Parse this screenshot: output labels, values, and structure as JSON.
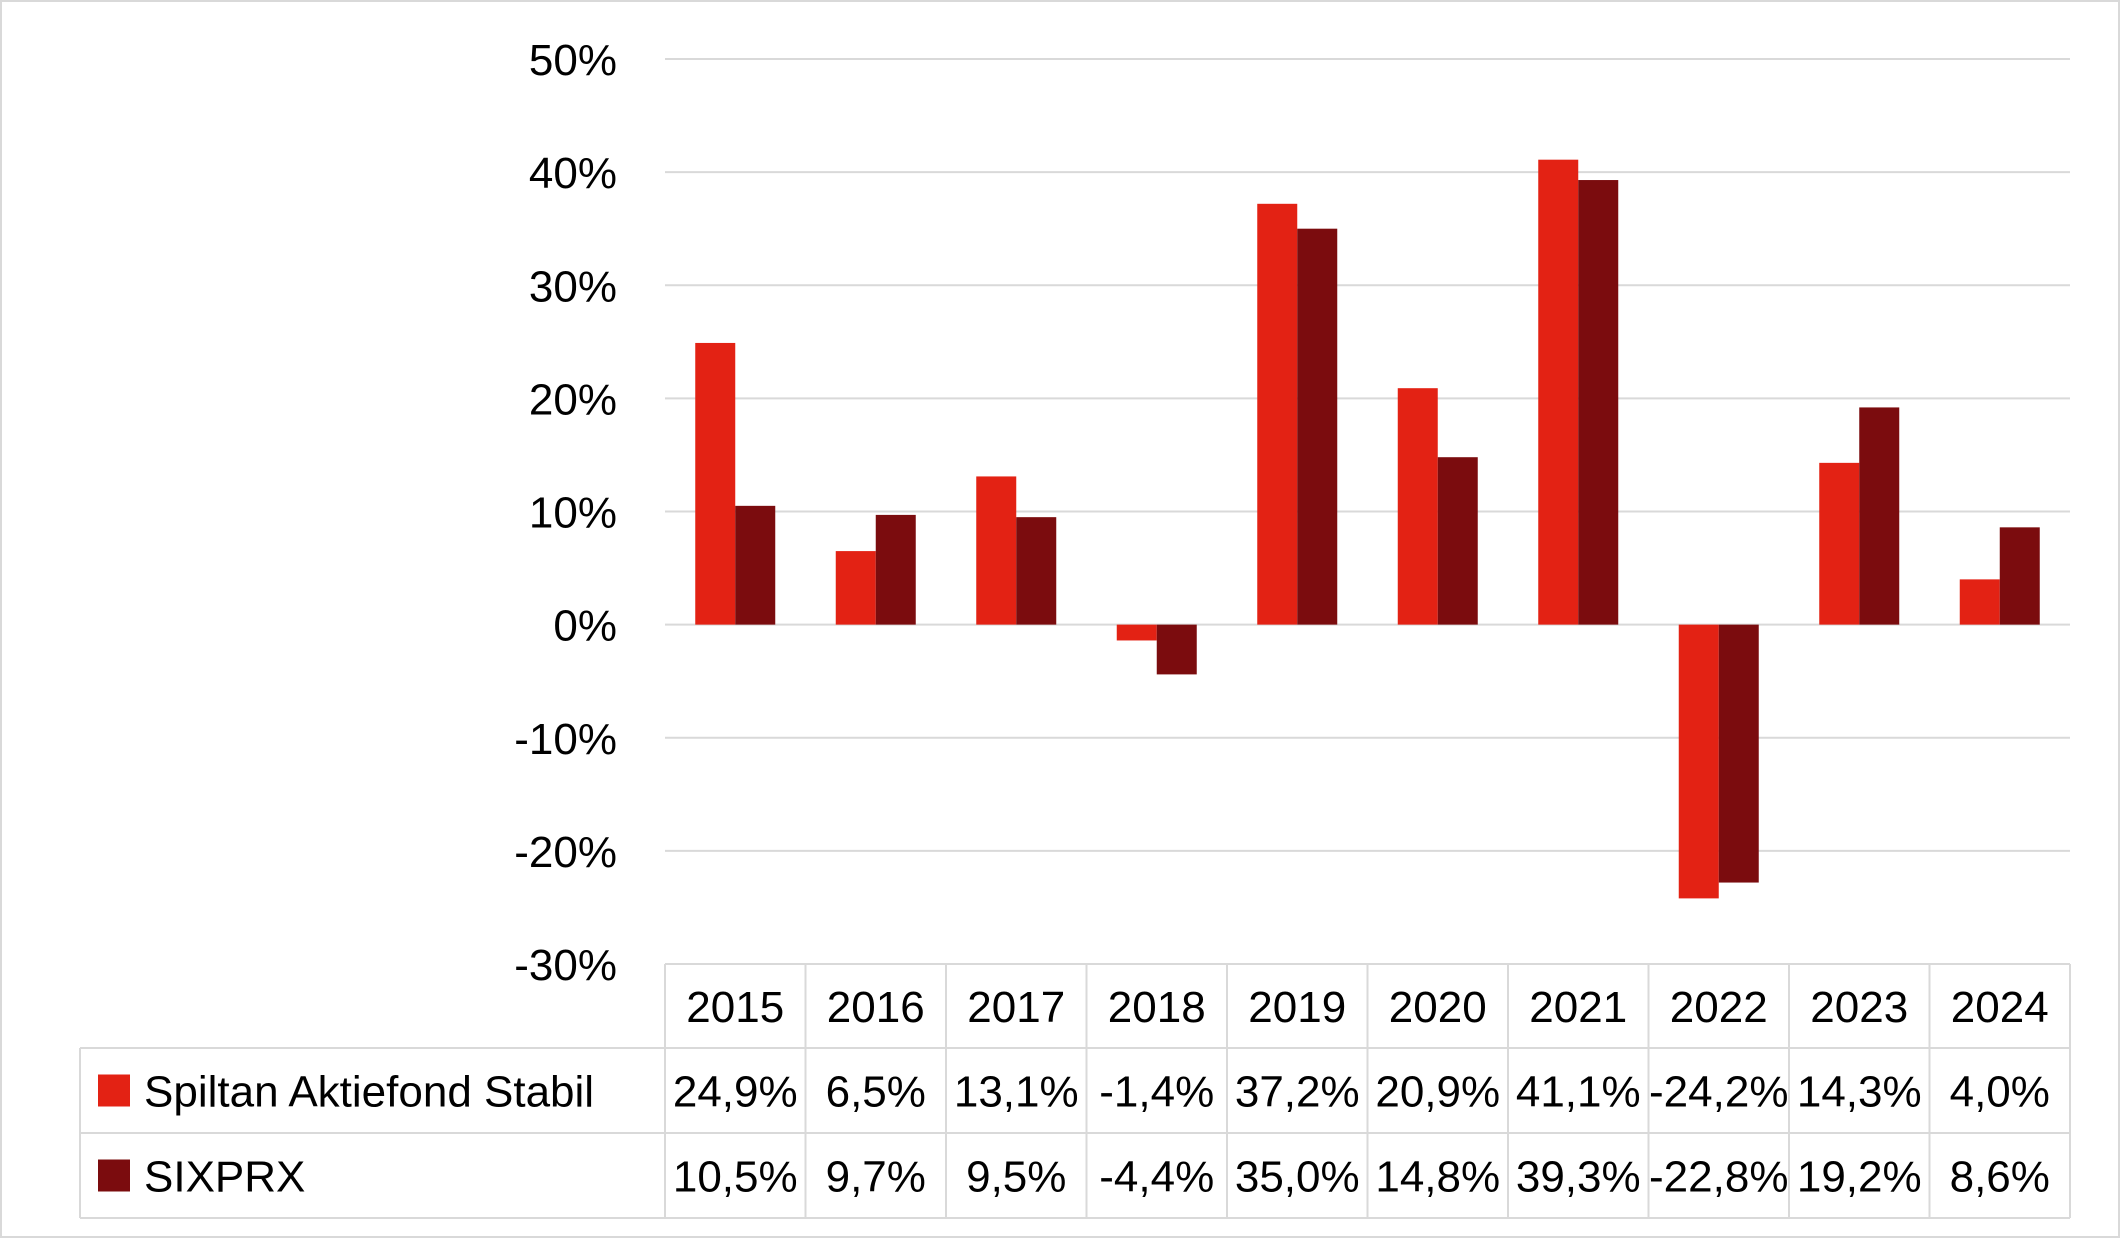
{
  "chart_data": {
    "type": "bar",
    "title": "",
    "xlabel": "",
    "ylabel": "",
    "categories": [
      "2015",
      "2016",
      "2017",
      "2018",
      "2019",
      "2020",
      "2021",
      "2022",
      "2023",
      "2024"
    ],
    "ylim": [
      -30,
      50
    ],
    "yticks": [
      50,
      40,
      30,
      20,
      10,
      0,
      -10,
      -20,
      -30
    ],
    "ytick_labels": [
      "50%",
      "40%",
      "30%",
      "20%",
      "10%",
      "0%",
      "-10%",
      "-20%",
      "-30%"
    ],
    "grid": true,
    "legend": "data-table",
    "series": [
      {
        "name": "Spiltan Aktiefond Stabil",
        "color": "#e32214",
        "values": [
          24.9,
          6.5,
          13.1,
          -1.4,
          37.2,
          20.9,
          41.1,
          -24.2,
          14.3,
          4.0
        ],
        "labels": [
          "24,9%",
          "6,5%",
          "13,1%",
          "-1,4%",
          "37,2%",
          "20,9%",
          "41,1%",
          "-24,2%",
          "14,3%",
          "4,0%"
        ]
      },
      {
        "name": "SIXPRX",
        "color": "#7b0c0e",
        "values": [
          10.5,
          9.7,
          9.5,
          -4.4,
          35.0,
          14.8,
          39.3,
          -22.8,
          19.2,
          8.6
        ],
        "labels": [
          "10,5%",
          "9,7%",
          "9,5%",
          "-4,4%",
          "35,0%",
          "14,8%",
          "39,3%",
          "-22,8%",
          "19,2%",
          "8,6%"
        ]
      }
    ]
  }
}
